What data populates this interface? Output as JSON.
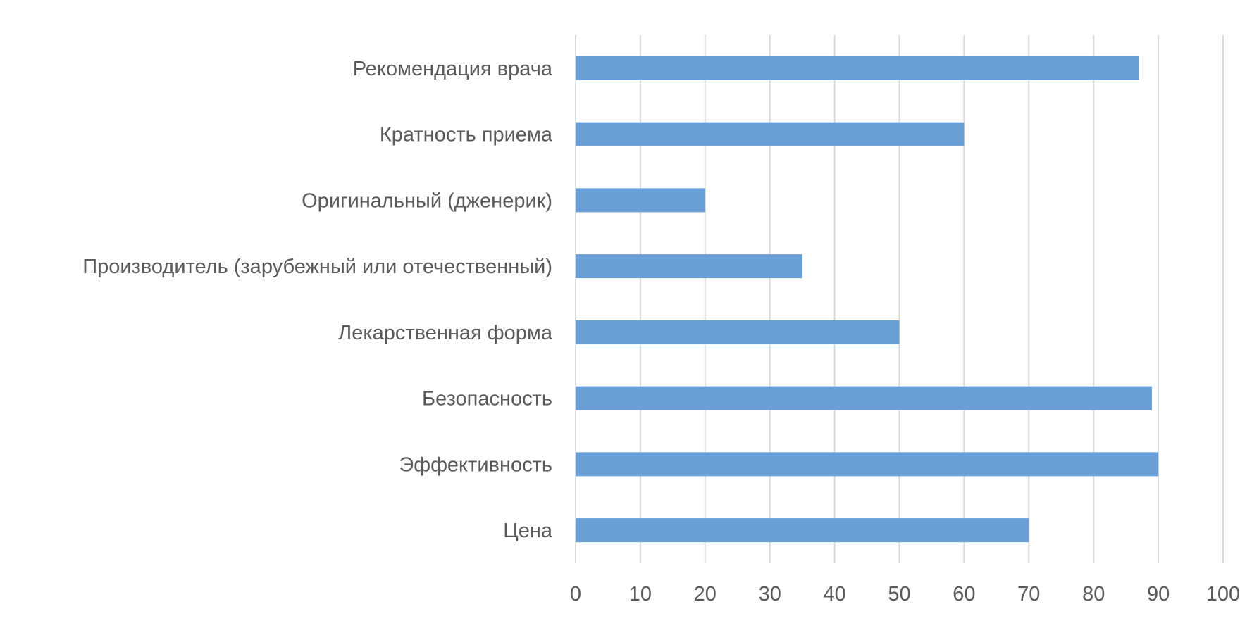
{
  "chart_data": {
    "type": "bar",
    "orientation": "horizontal",
    "categories": [
      "Рекомендация врача",
      "Кратность приема",
      "Оригинальный (дженерик)",
      "Производитель (зарубежный или отечественный)",
      "Лекарственная форма",
      "Безопасность",
      "Эффективность",
      "Цена"
    ],
    "values": [
      87,
      60,
      20,
      35,
      50,
      89,
      90,
      70
    ],
    "xlim": [
      0,
      100
    ],
    "xticks": [
      0,
      10,
      20,
      30,
      40,
      50,
      60,
      70,
      80,
      90,
      100
    ],
    "xtick_labels": [
      "0",
      "10",
      "20",
      "30",
      "40",
      "50",
      "60",
      "70",
      "80",
      "90",
      "100"
    ],
    "grid": "vertical",
    "legend": "none",
    "bar_color": "#6a9ed6",
    "grid_color": "#d9d9d9",
    "text_color": "#595959"
  }
}
